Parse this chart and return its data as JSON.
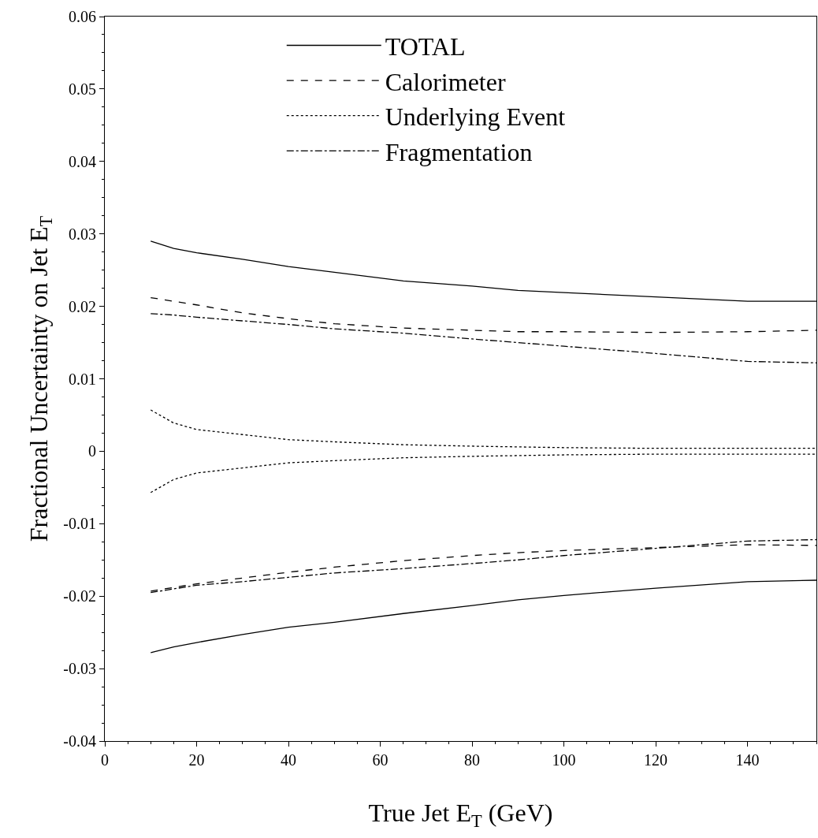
{
  "chart_data": {
    "type": "line",
    "xlabel": "True Jet E$_{T}$ (GeV)",
    "ylabel": "Fractional Uncertainty on Jet E$_{T}$",
    "x": [
      10,
      15,
      20,
      30,
      40,
      50,
      65,
      80,
      90,
      100,
      120,
      140,
      155
    ],
    "xlim": [
      0,
      155
    ],
    "xticks": [
      0,
      20,
      40,
      60,
      80,
      100,
      120,
      140
    ],
    "ylim": [
      -0.04,
      0.06
    ],
    "yticks": [
      -0.04,
      -0.03,
      -0.02,
      -0.01,
      0,
      0.01,
      0.02,
      0.03,
      0.04,
      0.05,
      0.06
    ],
    "legend": "top",
    "marker": "none",
    "series": [
      {
        "name": "TOTAL",
        "color": "#000000",
        "line_style": "solid",
        "values": [
          0.029,
          0.028,
          0.0274,
          0.0265,
          0.0255,
          0.0247,
          0.0235,
          0.0228,
          0.0222,
          0.0219,
          0.0213,
          0.0207,
          0.0207
        ]
      },
      {
        "name": "Calorimeter",
        "color": "#000000",
        "line_style": "dashed",
        "values": [
          0.0212,
          0.0207,
          0.0202,
          0.0191,
          0.0183,
          0.0176,
          0.017,
          0.0167,
          0.0165,
          0.0165,
          0.0164,
          0.0165,
          0.0167
        ]
      },
      {
        "name": "Underlying Event",
        "color": "#000000",
        "line_style": "dotted",
        "values": [
          0.0057,
          0.0039,
          0.003,
          0.0023,
          0.0016,
          0.0013,
          0.0009,
          0.0007,
          0.0006,
          0.0005,
          0.0004,
          0.0004,
          0.0004
        ]
      },
      {
        "name": "Fragmentation",
        "color": "#000000",
        "line_style": "dashdot",
        "values": [
          0.019,
          0.0188,
          0.0185,
          0.018,
          0.0175,
          0.0169,
          0.0163,
          0.0155,
          0.015,
          0.0145,
          0.0135,
          0.0124,
          0.0122
        ]
      },
      {
        "color": "#000000",
        "line_style": "solid",
        "values": [
          -0.0278,
          -0.027,
          -0.0264,
          -0.0253,
          -0.0243,
          -0.0236,
          -0.0224,
          -0.0213,
          -0.0205,
          -0.0199,
          -0.0189,
          -0.018,
          -0.0178
        ]
      },
      {
        "color": "#000000",
        "line_style": "dashed",
        "values": [
          -0.0193,
          -0.0188,
          -0.0183,
          -0.0175,
          -0.0167,
          -0.016,
          -0.0151,
          -0.0144,
          -0.014,
          -0.0137,
          -0.0133,
          -0.0129,
          -0.013
        ]
      },
      {
        "color": "#000000",
        "line_style": "dotted",
        "values": [
          -0.0057,
          -0.0039,
          -0.003,
          -0.0023,
          -0.0016,
          -0.0013,
          -0.0009,
          -0.0007,
          -0.0006,
          -0.0005,
          -0.0004,
          -0.0004,
          -0.0004
        ]
      },
      {
        "color": "#000000",
        "line_style": "dashdot",
        "values": [
          -0.0195,
          -0.019,
          -0.0185,
          -0.018,
          -0.0174,
          -0.0168,
          -0.0162,
          -0.0155,
          -0.015,
          -0.0144,
          -0.0134,
          -0.0124,
          -0.0122
        ]
      }
    ]
  }
}
